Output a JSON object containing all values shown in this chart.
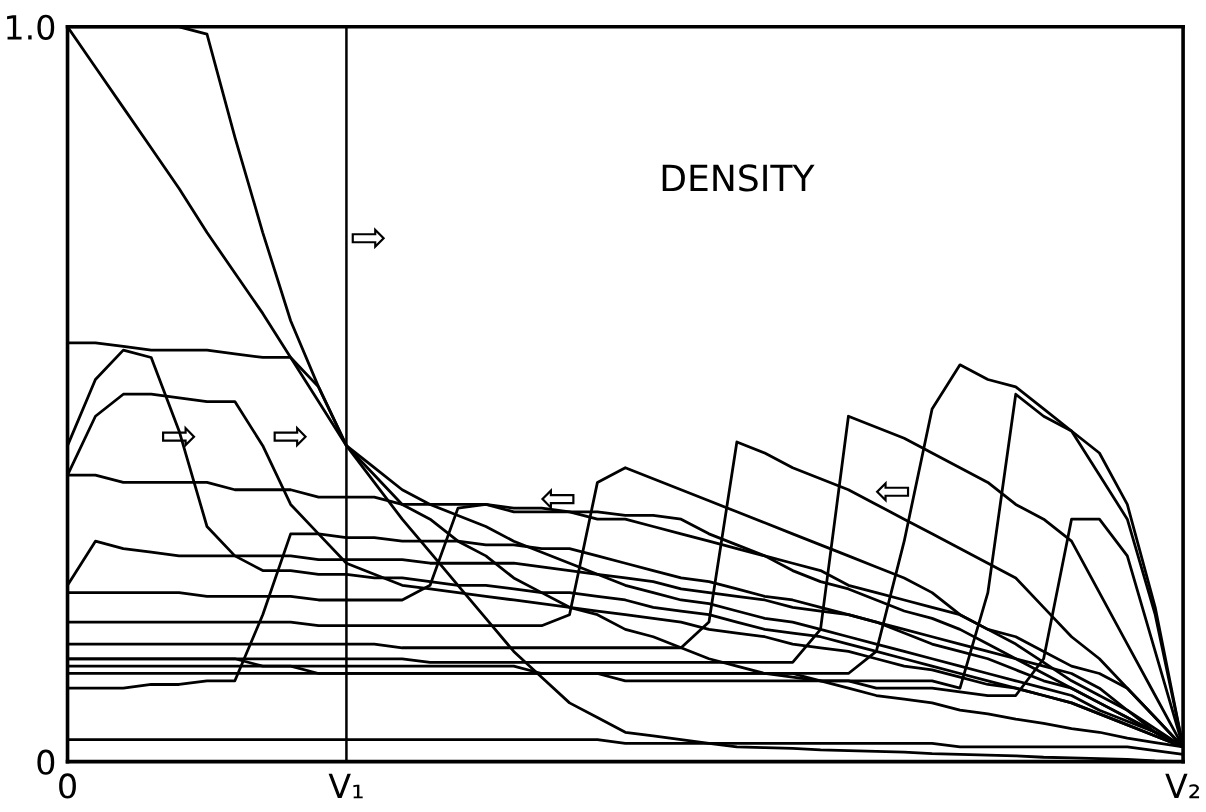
{
  "chart_data": {
    "type": "line",
    "title": "DENSITY",
    "ylim": [
      0,
      1
    ],
    "categories": [
      "0",
      null,
      null,
      null,
      null,
      null,
      null,
      null,
      null,
      null,
      "V₁",
      null,
      null,
      null,
      null,
      null,
      null,
      null,
      null,
      null,
      null,
      null,
      null,
      null,
      null,
      null,
      null,
      null,
      null,
      null,
      null,
      null,
      null,
      null,
      null,
      null,
      null,
      null,
      null,
      null,
      "V₂"
    ],
    "yticks": [
      0,
      {
        "value": 1,
        "label": "1.0"
      }
    ],
    "grid": false,
    "marker": "none",
    "line_style": "solid",
    "ref_lines": [
      {
        "axis": "x",
        "value": "V₁",
        "label": null,
        "color": "#000000"
      }
    ],
    "annotations": [
      "⇨",
      "⇨",
      "⇨",
      "⇦",
      "⇦"
    ],
    "series": [
      {
        "color": "#000000",
        "values": [
          1,
          0.945,
          0.89,
          0.835,
          0.78,
          0.72,
          0.665,
          0.61,
          0.55,
          0.49,
          0.43,
          0.38,
          0.33,
          0.285,
          0.24,
          0.195,
          0.15,
          0.115,
          0.08,
          0.06,
          0.04,
          0.035,
          0.03,
          0.025,
          0.02,
          0.019,
          0.018,
          0.016,
          0.015,
          0.014,
          0.013,
          0.011,
          0.01,
          0.009,
          0.008,
          0.006,
          0.005,
          0.004,
          0.003,
          0.001,
          0
        ]
      },
      {
        "color": "#000000",
        "values": [
          1,
          1,
          1,
          1,
          1,
          0.99,
          0.85,
          0.72,
          0.6,
          0.51,
          0.43,
          0.39,
          0.35,
          0.33,
          0.3,
          0.28,
          0.25,
          0.23,
          0.21,
          0.2,
          0.18,
          0.17,
          0.155,
          0.14,
          0.13,
          0.12,
          0.115,
          0.11,
          0.1,
          0.09,
          0.085,
          0.08,
          0.07,
          0.065,
          0.058,
          0.052,
          0.045,
          0.04,
          0.032,
          0.026,
          0.02
        ]
      },
      {
        "color": "#000000",
        "values": [
          0.57,
          0.57,
          0.565,
          0.56,
          0.56,
          0.56,
          0.555,
          0.55,
          0.55,
          0.51,
          0.43,
          0.4,
          0.37,
          0.35,
          0.335,
          0.32,
          0.3,
          0.285,
          0.27,
          0.255,
          0.24,
          0.23,
          0.22,
          0.215,
          0.205,
          0.195,
          0.19,
          0.18,
          0.17,
          0.16,
          0.15,
          0.14,
          0.13,
          0.12,
          0.11,
          0.1,
          0.09,
          0.07,
          0.055,
          0.04,
          0.02
        ]
      },
      {
        "color": "#000000",
        "values": [
          0.43,
          0.52,
          0.56,
          0.55,
          0.45,
          0.32,
          0.28,
          0.26,
          0.26,
          0.255,
          0.255,
          0.25,
          0.25,
          0.245,
          0.24,
          0.24,
          0.235,
          0.23,
          0.23,
          0.225,
          0.22,
          0.21,
          0.205,
          0.2,
          0.19,
          0.18,
          0.175,
          0.17,
          0.16,
          0.15,
          0.14,
          0.13,
          0.12,
          0.11,
          0.1,
          0.09,
          0.08,
          0.065,
          0.05,
          0.035,
          0.02
        ]
      },
      {
        "color": "#000000",
        "values": [
          0.39,
          0.47,
          0.5,
          0.5,
          0.495,
          0.49,
          0.49,
          0.43,
          0.35,
          0.31,
          0.27,
          0.255,
          0.24,
          0.235,
          0.23,
          0.225,
          0.22,
          0.215,
          0.21,
          0.205,
          0.2,
          0.195,
          0.19,
          0.18,
          0.175,
          0.17,
          0.16,
          0.155,
          0.15,
          0.14,
          0.13,
          0.125,
          0.115,
          0.105,
          0.1,
          0.09,
          0.08,
          0.065,
          0.05,
          0.035,
          0.02
        ]
      },
      {
        "color": "#000000",
        "values": [
          0.39,
          0.39,
          0.38,
          0.38,
          0.38,
          0.38,
          0.37,
          0.37,
          0.37,
          0.36,
          0.36,
          0.36,
          0.35,
          0.35,
          0.35,
          0.35,
          0.34,
          0.34,
          0.34,
          0.33,
          0.33,
          0.32,
          0.31,
          0.3,
          0.29,
          0.28,
          0.27,
          0.26,
          0.24,
          0.23,
          0.22,
          0.21,
          0.2,
          0.18,
          0.17,
          0.15,
          0.13,
          0.12,
          0.1,
          0.06,
          0.02
        ]
      },
      {
        "color": "#000000",
        "values": [
          0.24,
          0.3,
          0.29,
          0.285,
          0.28,
          0.28,
          0.28,
          0.28,
          0.28,
          0.275,
          0.275,
          0.275,
          0.275,
          0.27,
          0.27,
          0.27,
          0.27,
          0.265,
          0.26,
          0.255,
          0.25,
          0.245,
          0.235,
          0.23,
          0.225,
          0.22,
          0.21,
          0.205,
          0.2,
          0.19,
          0.18,
          0.17,
          0.16,
          0.15,
          0.14,
          0.13,
          0.12,
          0.1,
          0.07,
          0.045,
          0.02
        ]
      },
      {
        "color": "#000000",
        "values": [
          0.1,
          0.1,
          0.1,
          0.105,
          0.105,
          0.11,
          0.11,
          0.2,
          0.31,
          0.31,
          0.305,
          0.305,
          0.3,
          0.3,
          0.3,
          0.295,
          0.295,
          0.29,
          0.29,
          0.28,
          0.27,
          0.26,
          0.25,
          0.245,
          0.235,
          0.225,
          0.22,
          0.21,
          0.2,
          0.19,
          0.175,
          0.16,
          0.15,
          0.14,
          0.125,
          0.11,
          0.1,
          0.08,
          0.06,
          0.04,
          0.02
        ]
      },
      {
        "color": "#000000",
        "values": [
          0.23,
          0.23,
          0.23,
          0.23,
          0.23,
          0.225,
          0.225,
          0.225,
          0.225,
          0.22,
          0.22,
          0.22,
          0.22,
          0.24,
          0.345,
          0.35,
          0.345,
          0.345,
          0.34,
          0.34,
          0.335,
          0.335,
          0.33,
          0.31,
          0.295,
          0.28,
          0.26,
          0.245,
          0.235,
          0.22,
          0.205,
          0.195,
          0.18,
          0.16,
          0.14,
          0.12,
          0.1,
          0.08,
          0.06,
          0.04,
          0.02
        ]
      },
      {
        "color": "#000000",
        "values": [
          0.19,
          0.19,
          0.19,
          0.19,
          0.19,
          0.19,
          0.19,
          0.19,
          0.19,
          0.185,
          0.185,
          0.185,
          0.185,
          0.185,
          0.185,
          0.185,
          0.185,
          0.185,
          0.2,
          0.38,
          0.4,
          0.385,
          0.37,
          0.355,
          0.34,
          0.325,
          0.31,
          0.295,
          0.28,
          0.265,
          0.25,
          0.23,
          0.2,
          0.18,
          0.16,
          0.135,
          0.11,
          0.09,
          0.07,
          0.04,
          0.02
        ]
      },
      {
        "color": "#000000",
        "values": [
          0.16,
          0.16,
          0.16,
          0.16,
          0.16,
          0.16,
          0.16,
          0.16,
          0.16,
          0.16,
          0.16,
          0.16,
          0.155,
          0.155,
          0.155,
          0.155,
          0.155,
          0.155,
          0.155,
          0.155,
          0.155,
          0.155,
          0.155,
          0.19,
          0.435,
          0.42,
          0.4,
          0.385,
          0.37,
          0.35,
          0.33,
          0.31,
          0.29,
          0.27,
          0.25,
          0.21,
          0.17,
          0.14,
          0.1,
          0.06,
          0.02
        ]
      },
      {
        "color": "#000000",
        "values": [
          0.14,
          0.14,
          0.14,
          0.14,
          0.14,
          0.14,
          0.14,
          0.14,
          0.14,
          0.14,
          0.14,
          0.14,
          0.14,
          0.135,
          0.135,
          0.135,
          0.135,
          0.135,
          0.135,
          0.135,
          0.135,
          0.135,
          0.135,
          0.135,
          0.135,
          0.135,
          0.135,
          0.18,
          0.47,
          0.455,
          0.44,
          0.42,
          0.4,
          0.38,
          0.35,
          0.33,
          0.3,
          0.23,
          0.16,
          0.09,
          0.02
        ]
      },
      {
        "color": "#000000",
        "values": [
          0.12,
          0.12,
          0.12,
          0.12,
          0.12,
          0.12,
          0.12,
          0.12,
          0.12,
          0.12,
          0.12,
          0.12,
          0.12,
          0.12,
          0.12,
          0.12,
          0.12,
          0.12,
          0.12,
          0.12,
          0.12,
          0.12,
          0.12,
          0.12,
          0.12,
          0.12,
          0.12,
          0.12,
          0.12,
          0.15,
          0.3,
          0.48,
          0.54,
          0.52,
          0.51,
          0.48,
          0.45,
          0.42,
          0.35,
          0.21,
          0.02
        ]
      },
      {
        "color": "#000000",
        "values": [
          0.13,
          0.13,
          0.13,
          0.13,
          0.13,
          0.13,
          0.13,
          0.13,
          0.13,
          0.12,
          0.12,
          0.12,
          0.12,
          0.12,
          0.12,
          0.12,
          0.12,
          0.12,
          0.12,
          0.12,
          0.11,
          0.11,
          0.11,
          0.11,
          0.11,
          0.11,
          0.11,
          0.11,
          0.11,
          0.11,
          0.11,
          0.11,
          0.1,
          0.23,
          0.5,
          0.47,
          0.45,
          0.39,
          0.33,
          0.2,
          0.02
        ]
      },
      {
        "color": "#000000",
        "values": [
          0.14,
          0.14,
          0.14,
          0.14,
          0.14,
          0.14,
          0.14,
          0.13,
          0.13,
          0.13,
          0.13,
          0.13,
          0.13,
          0.13,
          0.13,
          0.13,
          0.13,
          0.12,
          0.12,
          0.12,
          0.12,
          0.12,
          0.12,
          0.12,
          0.12,
          0.12,
          0.12,
          0.11,
          0.11,
          0.1,
          0.1,
          0.1,
          0.095,
          0.09,
          0.09,
          0.14,
          0.33,
          0.33,
          0.28,
          0.15,
          0.02
        ]
      },
      {
        "color": "#000000",
        "values": [
          0.03,
          0.03,
          0.03,
          0.03,
          0.03,
          0.03,
          0.03,
          0.03,
          0.03,
          0.03,
          0.03,
          0.03,
          0.03,
          0.03,
          0.03,
          0.03,
          0.03,
          0.03,
          0.03,
          0.03,
          0.025,
          0.025,
          0.025,
          0.025,
          0.025,
          0.025,
          0.025,
          0.025,
          0.025,
          0.025,
          0.025,
          0.025,
          0.02,
          0.02,
          0.02,
          0.02,
          0.02,
          0.02,
          0.02,
          0.015,
          0.01
        ]
      }
    ]
  }
}
